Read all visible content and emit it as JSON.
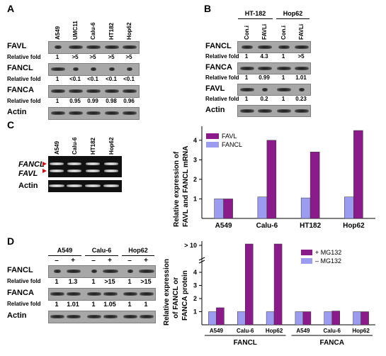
{
  "panels": {
    "a": "A",
    "b": "B",
    "c": "C",
    "d": "D"
  },
  "panel_a": {
    "lanes": [
      "A549",
      "UMC11",
      "Calu-6",
      "HT182",
      "Hop62"
    ],
    "rows": [
      {
        "label": "FAVL",
        "fold_label": "Relative fold",
        "folds": [
          "1",
          ">5",
          ">5",
          ">5",
          ">5"
        ]
      },
      {
        "label": "FANCL",
        "fold_label": "Relative fold",
        "folds": [
          "1",
          "<0.1",
          "<0.1",
          "<0.1",
          "<0.1"
        ]
      },
      {
        "label": "FANCA",
        "fold_label": "Relative fold",
        "folds": [
          "1",
          "0.95",
          "0.99",
          "0.98",
          "0.96"
        ]
      },
      {
        "label": "Actin"
      }
    ]
  },
  "panel_b": {
    "groups": [
      "HT-182",
      "Hop62"
    ],
    "lanes": [
      "Con.i",
      "FAVLi",
      "Con.i",
      "FAVLi"
    ],
    "rows": [
      {
        "label": "FANCL",
        "fold_label": "Relative fold",
        "folds": [
          "1",
          "4.3",
          "1",
          ">5"
        ]
      },
      {
        "label": "FANCA",
        "fold_label": "Relative fold",
        "folds": [
          "1",
          "0.99",
          "1",
          "1.01"
        ]
      },
      {
        "label": "FAVL",
        "fold_label": "Relative fold",
        "folds": [
          "1",
          "0.2",
          "1",
          "0.23"
        ]
      },
      {
        "label": "Actin"
      }
    ]
  },
  "panel_c": {
    "gel_lanes": [
      "A549",
      "Calu-6",
      "HT182",
      "Hop62"
    ],
    "gel_rows": [
      "FANCL",
      "FAVL",
      "Actin"
    ]
  },
  "panel_d": {
    "groups": [
      "A549",
      "Calu-6",
      "Hop62"
    ],
    "signs": [
      "–",
      "+",
      "–",
      "+",
      "–",
      "+"
    ],
    "rows": [
      {
        "label": "FANCL",
        "fold_label": "Relative fold",
        "folds": [
          "1",
          "1.3",
          "1",
          ">15",
          "1",
          ">15"
        ]
      },
      {
        "label": "FANCA",
        "fold_label": "Relative fold",
        "folds": [
          "1",
          "1.01",
          "1",
          "1.05",
          "1",
          "1"
        ]
      },
      {
        "label": "Actin"
      }
    ]
  },
  "chart_data": [
    {
      "type": "bar",
      "categories": [
        "A549",
        "Calu-6",
        "HT182",
        "Hop62"
      ],
      "series": [
        {
          "name": "FAVL",
          "values": [
            1.0,
            4.0,
            3.4,
            4.5
          ]
        },
        {
          "name": "FANCL",
          "values": [
            1.0,
            1.1,
            1.05,
            1.1
          ]
        }
      ],
      "ylabel_line1": "Relative expression of",
      "ylabel_line2": "FAVL and FANCL mRNA",
      "ylim": [
        0,
        4.5
      ],
      "yticks": [
        "1",
        "2",
        "3",
        "4"
      ],
      "colors": {
        "FAVL": "#8b1a8b",
        "FANCL": "#9b9bf0"
      },
      "legend": "top-left"
    },
    {
      "type": "bar",
      "categories": [
        "A549",
        "Calu-6",
        "Hop62",
        "A549",
        "Calu-6",
        "Hop62"
      ],
      "groups": [
        "FANCL",
        "FANCA"
      ],
      "series": [
        {
          "name": "+ MG132",
          "values": [
            1.3,
            10,
            10,
            1.0,
            1.05,
            1.0
          ]
        },
        {
          "name": "– MG132",
          "values": [
            1.0,
            1.0,
            1.0,
            1.0,
            1.0,
            1.0
          ]
        }
      ],
      "ylabel_line1": "Relative expression",
      "ylabel_line2": "of FANCL or",
      "ylabel_line3": "FANCA protein",
      "yticks": [
        "1",
        "2",
        "3",
        "4",
        "> 10"
      ],
      "colors": {
        "+ MG132": "#8b1a8b",
        "– MG132": "#9b9bf0"
      },
      "legend": "top-right"
    }
  ]
}
